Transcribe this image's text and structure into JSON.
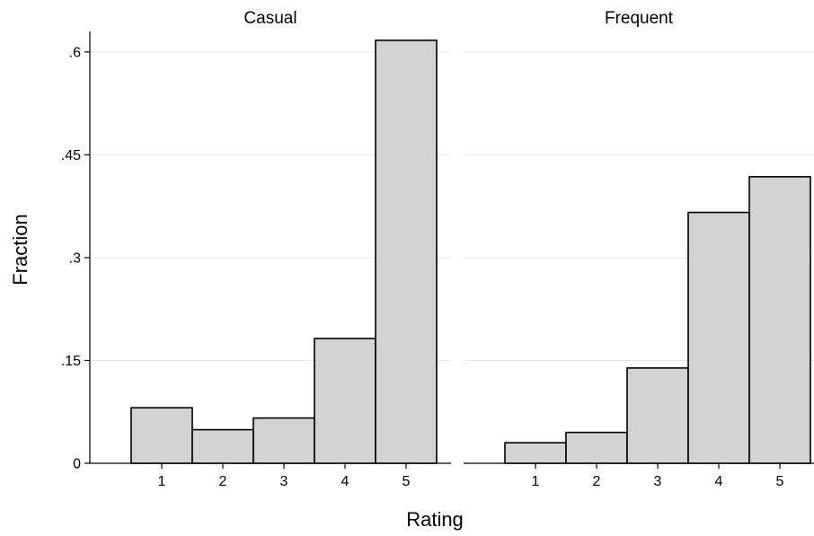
{
  "chart_data": {
    "type": "bar",
    "subtype": "histogram-by-panel",
    "xlabel": "Rating",
    "ylabel": "Fraction",
    "ylim": [
      0,
      0.63
    ],
    "yticks": [
      0,
      0.15,
      0.3,
      0.45,
      0.6
    ],
    "ytick_labels": [
      "0",
      ".15",
      ".3",
      ".45",
      ".6"
    ],
    "categories": [
      "1",
      "2",
      "3",
      "4",
      "5"
    ],
    "grid": "horizontal",
    "bar_fill": "#d3d3d3",
    "bar_edge": "#000000",
    "panels": [
      {
        "title": "Casual",
        "values": [
          0.081,
          0.049,
          0.066,
          0.182,
          0.617
        ]
      },
      {
        "title": "Frequent",
        "values": [
          0.03,
          0.045,
          0.139,
          0.366,
          0.418
        ]
      }
    ]
  }
}
